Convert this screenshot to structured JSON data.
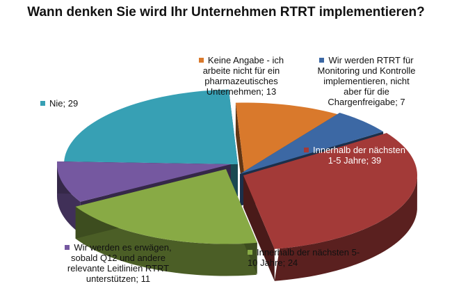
{
  "chart_data": {
    "type": "pie",
    "title": "Wann denken Sie wird Ihr Unternehmen RTRT implementieren?",
    "slices": [
      {
        "label": "Keine Angabe - ich arbeite nicht für ein pharmazeutisches Unternehmen",
        "value": 13,
        "color": "#d9792c"
      },
      {
        "label": "Wir werden RTRT für Monitoring und Kontrolle implementieren, nicht aber für die Chargenfreigabe",
        "value": 7,
        "color": "#3c68a4"
      },
      {
        "label": "Innerhalb der nächsten 1-5 Jahre",
        "value": 39,
        "color": "#a33a38"
      },
      {
        "label": "Innerhalb der nächsten 5-10 Jahre",
        "value": 24,
        "color": "#88aa45"
      },
      {
        "label": "Wir werden es erwägen, sobald Q12 und andere relevante Leitlinien RTRT unterstützen",
        "value": 11,
        "color": "#7558a0"
      },
      {
        "label": "Nie",
        "value": 29,
        "color": "#37a0b4"
      }
    ],
    "data_labels": [
      {
        "text": [
          "Keine Angabe - ich",
          "arbeite nicht für ein",
          "pharmazeutisches",
          "Unternehmen; 13"
        ]
      },
      {
        "text": [
          "Wir werden RTRT für",
          "Monitoring und Kontrolle",
          "implementieren, nicht",
          "aber für die",
          "Chargenfreigabe; 7"
        ]
      },
      {
        "text": [
          "Innerhalb der nächsten",
          "1-5 Jahre; 39"
        ]
      },
      {
        "text": [
          "Innerhalb der nächsten 5-",
          "10 Jahre; 24"
        ]
      },
      {
        "text": [
          "Wir werden es erwägen,",
          "sobald Q12 und andere",
          "relevante Leitlinien RTRT",
          "unterstützen; 11"
        ]
      },
      {
        "text": [
          "Nie; 29"
        ]
      }
    ]
  }
}
